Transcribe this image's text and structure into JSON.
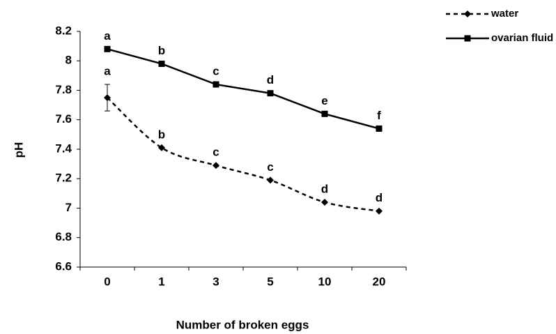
{
  "chart_data": {
    "type": "line",
    "xlabel": "Number of broken eggs",
    "ylabel": "pH",
    "categories": [
      "0",
      "1",
      "3",
      "5",
      "10",
      "20"
    ],
    "ylim": [
      6.6,
      8.2
    ],
    "yticks": [
      6.6,
      6.8,
      7,
      7.2,
      7.4,
      7.6,
      7.8,
      8,
      8.2
    ],
    "legend": "top-right",
    "series": [
      {
        "name": "water",
        "color": "#000000",
        "dash": true,
        "smooth": true,
        "marker": "diamond",
        "values": [
          7.75,
          7.41,
          7.29,
          7.19,
          7.04,
          6.98
        ],
        "errors": [
          0.09,
          null,
          null,
          null,
          null,
          null
        ],
        "letters": [
          "a",
          "b",
          "c",
          "c",
          "d",
          "d"
        ]
      },
      {
        "name": "ovarian fluid",
        "color": "#000000",
        "dash": false,
        "smooth": false,
        "marker": "square",
        "values": [
          8.08,
          7.98,
          7.84,
          7.78,
          7.64,
          7.54
        ],
        "letters": [
          "a",
          "b",
          "c",
          "d",
          "e",
          "f"
        ]
      }
    ]
  }
}
